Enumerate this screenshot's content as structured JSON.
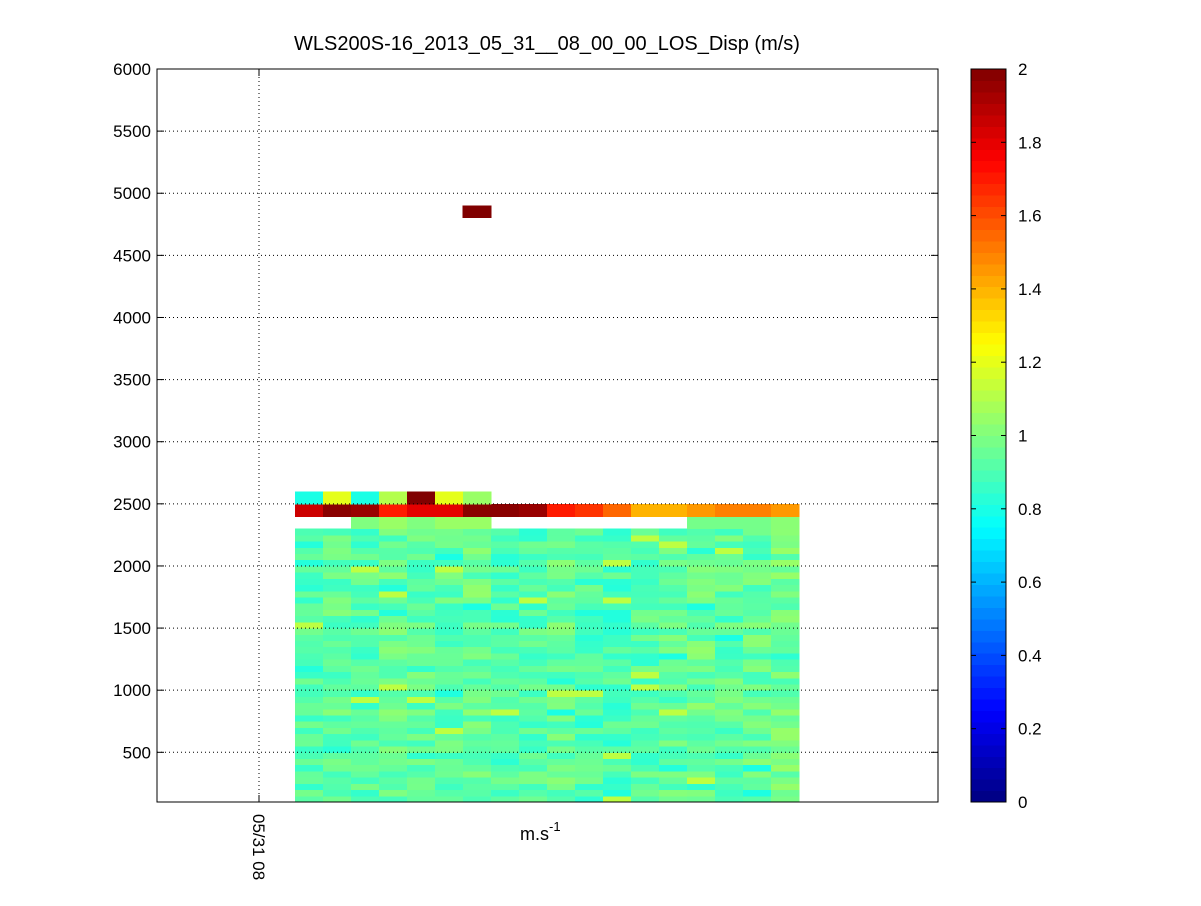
{
  "chart_data": {
    "type": "heatmap",
    "title": "WLS200S-16_2013_05_31__08_00_00_LOS_Disp (m/s)",
    "xlabel": "m.s",
    "xlabel_superscript": "-1",
    "ylabel": "",
    "x_tick_labels": [
      "05/31 08"
    ],
    "y_ticks": [
      500,
      1000,
      1500,
      2000,
      2500,
      3000,
      3500,
      4000,
      4500,
      5000,
      5500,
      6000
    ],
    "ylim": [
      100,
      6000
    ],
    "grid": true,
    "colormap": "jet",
    "colorbar": {
      "range": [
        0,
        2
      ],
      "ticks": [
        0,
        0.2,
        0.4,
        0.6,
        0.8,
        1,
        1.2,
        1.4,
        1.6,
        1.8,
        2
      ]
    },
    "columns": 18,
    "column_label_index": -1.3,
    "row_range_gate": 50,
    "highlight_cells": [
      {
        "col": 6,
        "y_from": 4800,
        "y_to": 4900,
        "value": 2.0
      }
    ],
    "band_2525": {
      "y_from": 2500,
      "y_to": 2600,
      "cols": [
        0,
        1,
        2,
        3,
        4,
        5,
        6
      ],
      "values": [
        0.8,
        1.2,
        0.8,
        1.1,
        2.0,
        1.2,
        1.05
      ]
    },
    "band_2450": {
      "y_from": 2400,
      "y_to": 2500,
      "values": [
        1.85,
        1.98,
        1.95,
        1.7,
        1.8,
        1.8,
        1.98,
        1.98,
        1.95,
        1.7,
        1.65,
        1.55,
        1.4,
        1.4,
        1.45,
        1.5,
        1.5,
        1.45
      ]
    },
    "band_2350": {
      "y_from": 2300,
      "y_to": 2400,
      "values": [
        null,
        null,
        1.0,
        1.05,
        1.0,
        1.05,
        1.05,
        null,
        null,
        null,
        null,
        null,
        null,
        null,
        0.98,
        0.98,
        0.98,
        1.02
      ]
    },
    "bulk": {
      "y_from": 100,
      "y_to": 2300,
      "base_value": 0.92,
      "column_offsets": [
        -0.02,
        0.02,
        0.0,
        0.03,
        0.01,
        0.02,
        0.04,
        -0.01,
        0.0,
        0.03,
        -0.02,
        -0.03,
        0.0,
        0.02,
        0.04,
        0.01,
        0.03,
        0.05
      ]
    }
  }
}
